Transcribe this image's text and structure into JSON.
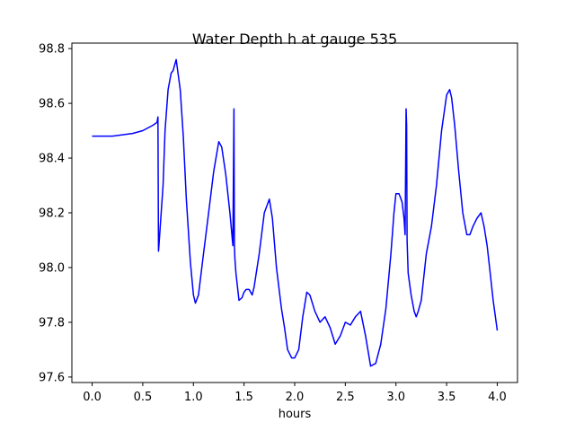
{
  "chart_data": {
    "type": "line",
    "title": "Water Depth h at gauge 535",
    "xlabel": "hours",
    "ylabel": "",
    "xlim": [
      -0.2,
      4.2
    ],
    "ylim": [
      97.58,
      98.82
    ],
    "grid": false,
    "legend": "none",
    "x_ticks": [
      "0.0",
      "0.5",
      "1.0",
      "1.5",
      "2.0",
      "2.5",
      "3.0",
      "3.5",
      "4.0"
    ],
    "x_tick_values": [
      0.0,
      0.5,
      1.0,
      1.5,
      2.0,
      2.5,
      3.0,
      3.5,
      4.0
    ],
    "y_ticks": [
      "97.6",
      "97.8",
      "98.0",
      "98.2",
      "98.4",
      "98.6",
      "98.8"
    ],
    "y_tick_values": [
      97.6,
      97.8,
      98.0,
      98.2,
      98.4,
      98.6,
      98.8
    ],
    "series": [
      {
        "color": "#0000ff",
        "x": [
          0.0,
          0.2,
          0.4,
          0.5,
          0.6,
          0.64,
          0.65,
          0.655,
          0.66,
          0.7,
          0.72,
          0.75,
          0.78,
          0.8,
          0.83,
          0.87,
          0.9,
          0.93,
          0.97,
          1.0,
          1.02,
          1.05,
          1.1,
          1.15,
          1.2,
          1.25,
          1.28,
          1.32,
          1.36,
          1.39,
          1.4,
          1.405,
          1.41,
          1.42,
          1.45,
          1.48,
          1.5,
          1.52,
          1.55,
          1.58,
          1.6,
          1.65,
          1.7,
          1.75,
          1.78,
          1.82,
          1.87,
          1.9,
          1.93,
          1.97,
          2.0,
          2.04,
          2.08,
          2.12,
          2.15,
          2.2,
          2.25,
          2.3,
          2.35,
          2.4,
          2.45,
          2.5,
          2.55,
          2.6,
          2.65,
          2.7,
          2.75,
          2.8,
          2.85,
          2.9,
          2.95,
          2.98,
          3.0,
          3.03,
          3.06,
          3.08,
          3.09,
          3.1,
          3.105,
          3.11,
          3.12,
          3.15,
          3.18,
          3.2,
          3.22,
          3.25,
          3.3,
          3.35,
          3.4,
          3.45,
          3.5,
          3.53,
          3.55,
          3.58,
          3.62,
          3.66,
          3.7,
          3.73,
          3.76,
          3.8,
          3.84,
          3.87,
          3.9,
          3.93,
          3.96,
          4.0
        ],
        "values": [
          98.48,
          98.48,
          98.49,
          98.5,
          98.52,
          98.53,
          98.55,
          98.06,
          98.08,
          98.3,
          98.5,
          98.65,
          98.71,
          98.72,
          98.76,
          98.65,
          98.48,
          98.25,
          98.02,
          97.9,
          97.87,
          97.9,
          98.05,
          98.2,
          98.35,
          98.46,
          98.44,
          98.34,
          98.2,
          98.08,
          98.58,
          98.08,
          98.03,
          97.98,
          97.88,
          97.89,
          97.91,
          97.92,
          97.92,
          97.9,
          97.93,
          98.05,
          98.2,
          98.25,
          98.18,
          98.0,
          97.85,
          97.78,
          97.7,
          97.67,
          97.67,
          97.7,
          97.82,
          97.91,
          97.9,
          97.84,
          97.8,
          97.82,
          97.78,
          97.72,
          97.75,
          97.8,
          97.79,
          97.82,
          97.84,
          97.75,
          97.64,
          97.65,
          97.72,
          97.85,
          98.05,
          98.2,
          98.27,
          98.27,
          98.24,
          98.18,
          98.12,
          98.58,
          98.52,
          98.1,
          97.98,
          97.9,
          97.84,
          97.82,
          97.84,
          97.88,
          98.05,
          98.15,
          98.3,
          98.5,
          98.63,
          98.65,
          98.62,
          98.52,
          98.35,
          98.2,
          98.12,
          98.12,
          98.15,
          98.18,
          98.2,
          98.15,
          98.08,
          97.98,
          97.88,
          97.77
        ]
      }
    ]
  }
}
